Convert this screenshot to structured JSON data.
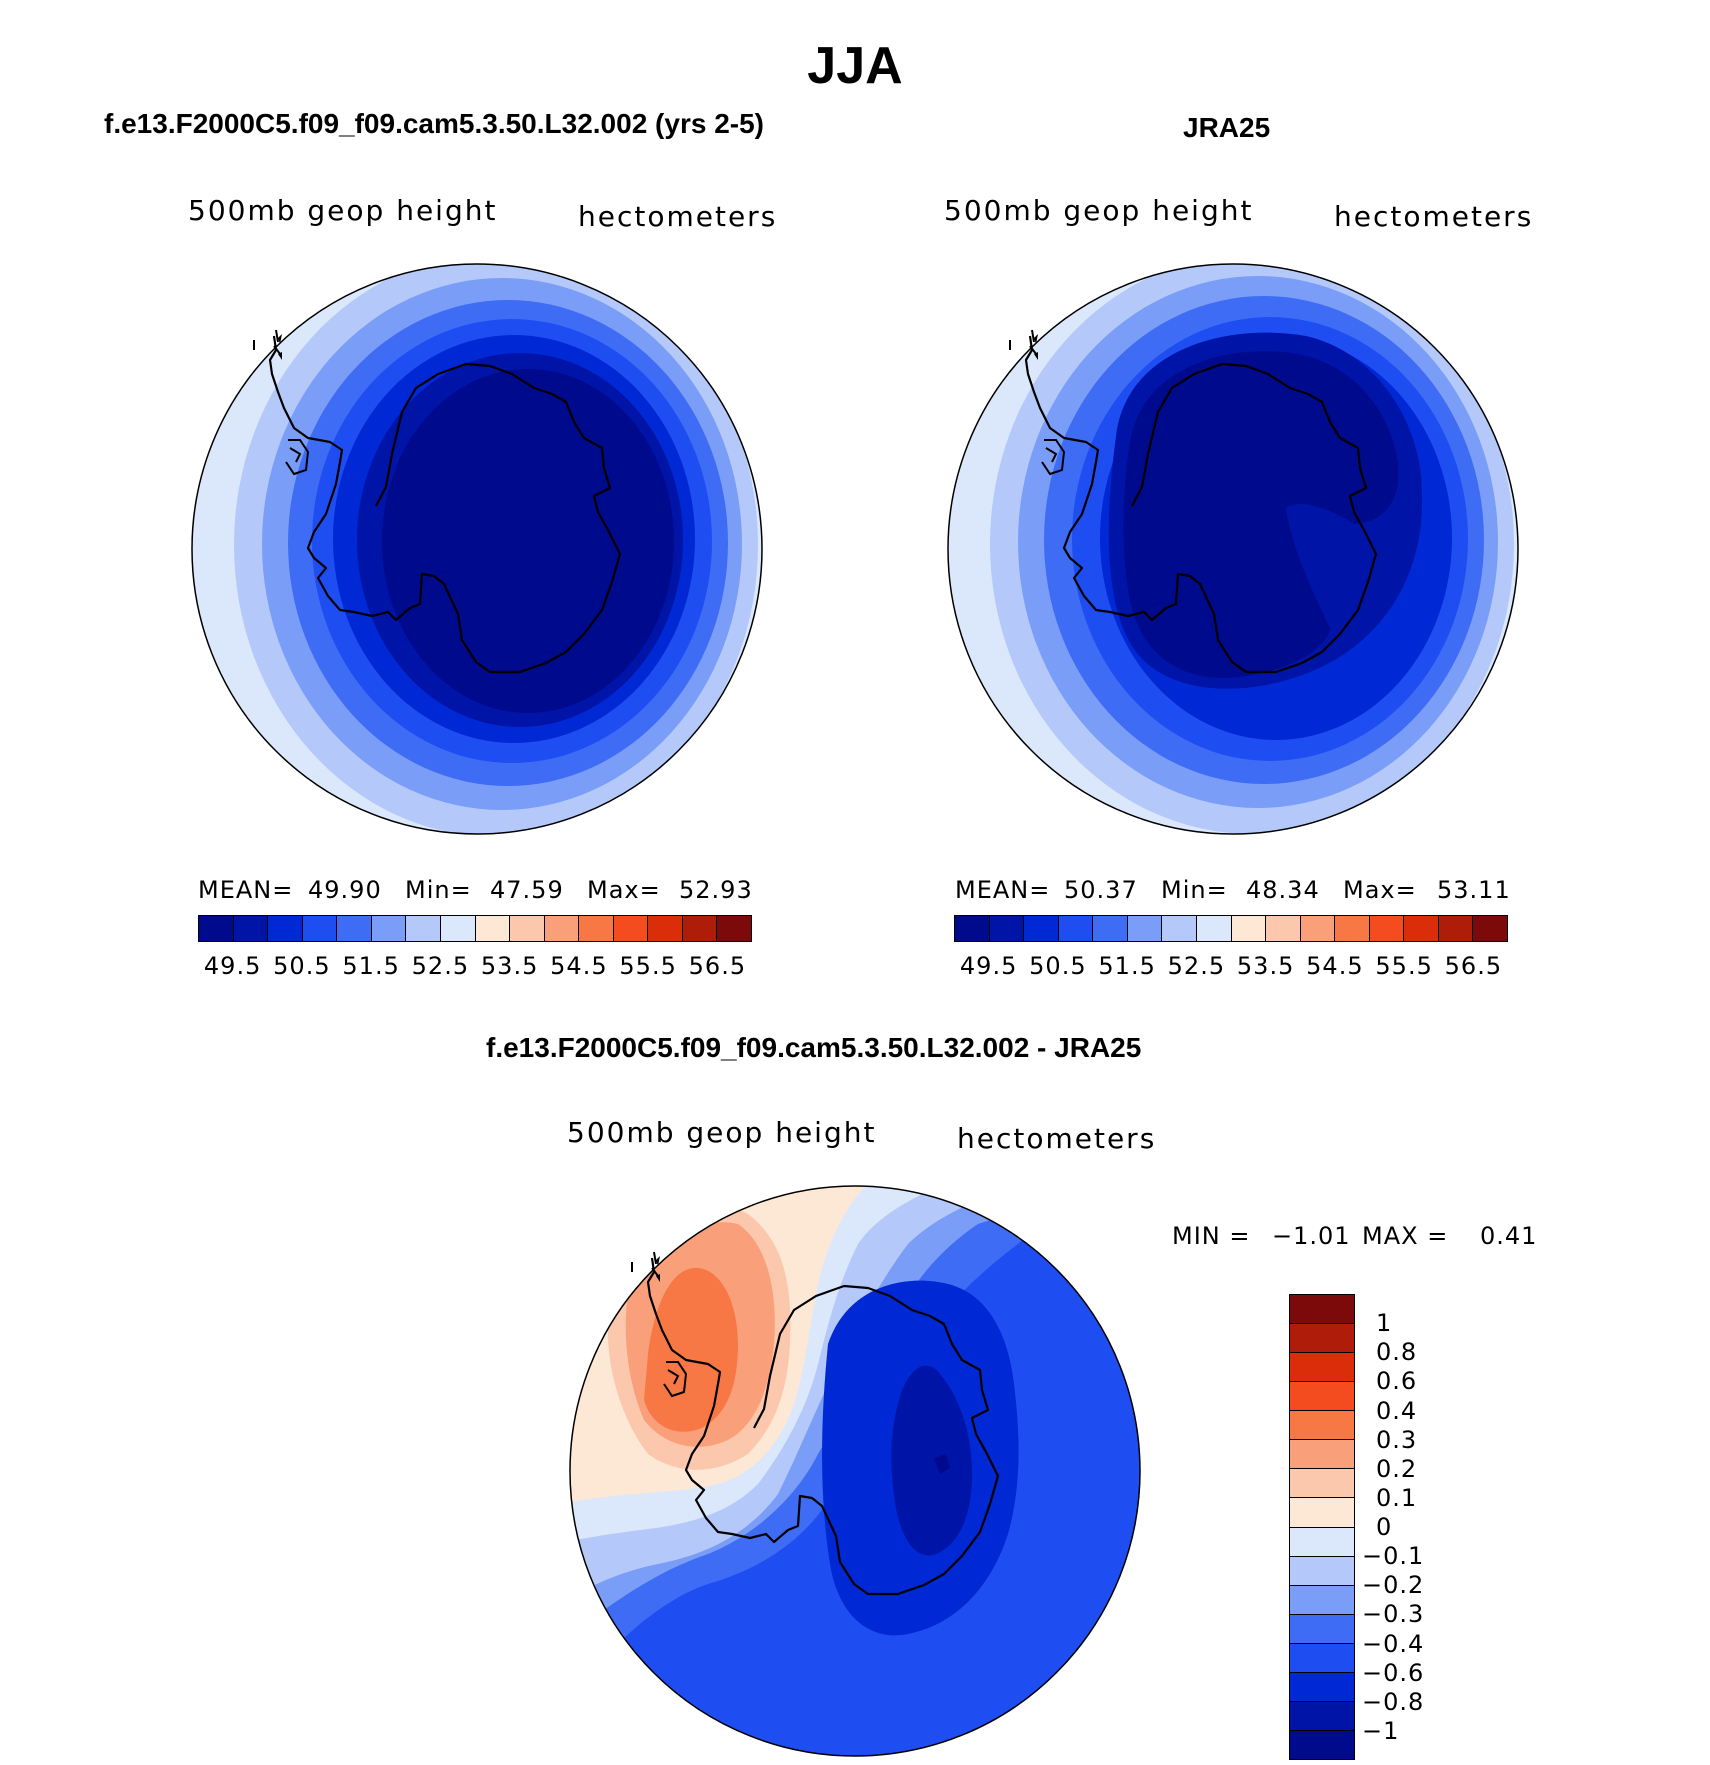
{
  "title": "JJA",
  "panels": [
    {
      "id": "model",
      "title": "f.e13.F2000C5.f09_f09.cam5.3.50.L32.002 (yrs 2-5)",
      "variable": "500mb geop height",
      "units": "hectometers",
      "stats": {
        "mean_label": "MEAN=",
        "mean": "49.90",
        "min_label": "Min=",
        "min": "47.59",
        "max_label": "Max=",
        "max": "52.93"
      }
    },
    {
      "id": "obs",
      "title": "JRA25",
      "variable": "500mb geop height",
      "units": "hectometers",
      "stats": {
        "mean_label": "MEAN=",
        "mean": "50.37",
        "min_label": "Min=",
        "min": "48.34",
        "max_label": "Max=",
        "max": "53.11"
      }
    },
    {
      "id": "diff",
      "title": "f.e13.F2000C5.f09_f09.cam5.3.50.L32.002 - JRA25",
      "variable": "500mb geop height",
      "units": "hectometers",
      "stats": {
        "min_label": "MIN =",
        "min": "−1.01",
        "max_label": "MAX =",
        "max": "0.41"
      }
    }
  ],
  "colorbar_abs": {
    "colors": [
      "#000a8c",
      "#0014a8",
      "#0028d4",
      "#1e4ef2",
      "#3f6cf5",
      "#7a9ef7",
      "#b4c9fa",
      "#dbe8fc",
      "#fde8d6",
      "#fcc8ad",
      "#f9a07a",
      "#f77845",
      "#f54c1f",
      "#dc2d0a",
      "#b01c0a",
      "#7d0a0a"
    ],
    "tick_labels": [
      "49.5",
      "50.5",
      "51.5",
      "52.5",
      "53.5",
      "54.5",
      "55.5",
      "56.5"
    ]
  },
  "colorbar_diff": {
    "colors": [
      "#7d0a0a",
      "#b01c0a",
      "#dc2d0a",
      "#f54c1f",
      "#f77845",
      "#f9a07a",
      "#fcc8ad",
      "#fde8d6",
      "#dbe8fc",
      "#b4c9fa",
      "#7a9ef7",
      "#3f6cf5",
      "#1e4ef2",
      "#0028d4",
      "#0014a8",
      "#000a8c"
    ],
    "tick_labels": [
      "1",
      "0.8",
      "0.6",
      "0.4",
      "0.3",
      "0.2",
      "0.1",
      "0",
      "−0.1",
      "−0.2",
      "−0.3",
      "−0.4",
      "−0.6",
      "−0.8",
      "−1"
    ]
  },
  "chart_data": [
    {
      "type": "heatmap",
      "title": "f.e13.F2000C5.f09_f09.cam5.3.50.L32.002 (yrs 2-5)",
      "projection": "south polar stereographic",
      "variable": "500mb geop height",
      "units": "hectometers",
      "mean": 49.9,
      "min": 47.59,
      "max": 52.93,
      "contour_levels": [
        49.5,
        50.0,
        50.5,
        51.0,
        51.5,
        52.0,
        52.5,
        53.0,
        53.5,
        54.0,
        54.5,
        55.0,
        55.5,
        56.0,
        56.5
      ]
    },
    {
      "type": "heatmap",
      "title": "JRA25",
      "projection": "south polar stereographic",
      "variable": "500mb geop height",
      "units": "hectometers",
      "mean": 50.37,
      "min": 48.34,
      "max": 53.11,
      "contour_levels": [
        49.5,
        50.0,
        50.5,
        51.0,
        51.5,
        52.0,
        52.5,
        53.0,
        53.5,
        54.0,
        54.5,
        55.0,
        55.5,
        56.0,
        56.5
      ]
    },
    {
      "type": "heatmap",
      "title": "f.e13.F2000C5.f09_f09.cam5.3.50.L32.002 - JRA25",
      "projection": "south polar stereographic",
      "variable": "500mb geop height",
      "units": "hectometers",
      "min": -1.01,
      "max": 0.41,
      "contour_levels": [
        -1,
        -0.8,
        -0.6,
        -0.4,
        -0.3,
        -0.2,
        -0.1,
        0,
        0.1,
        0.2,
        0.3,
        0.4,
        0.6,
        0.8,
        1
      ]
    }
  ]
}
